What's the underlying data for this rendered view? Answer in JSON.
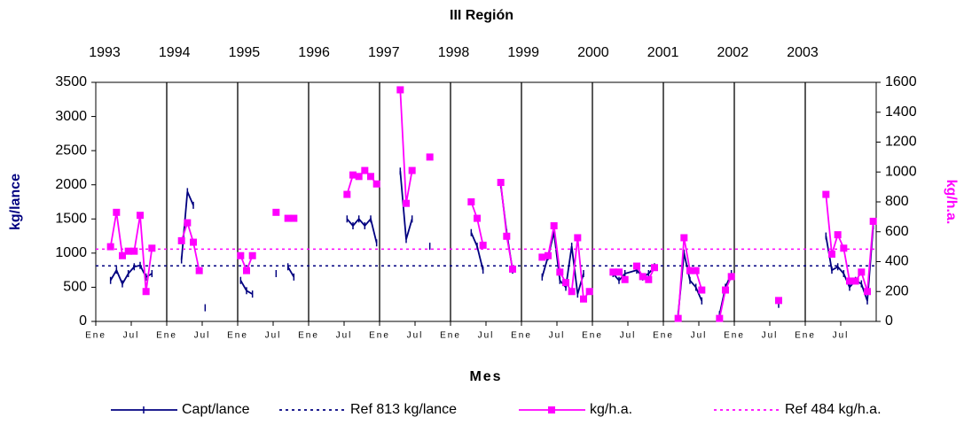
{
  "chart_data": {
    "type": "line",
    "title": "III Región",
    "xlabel": "Mes",
    "ylabel": "kg/lance",
    "y2label": "kg/h.a.",
    "top_axis_labels": [
      "1993",
      "1994",
      "1995",
      "1996",
      "1997",
      "1998",
      "1999",
      "2000",
      "2001",
      "2002",
      "2003"
    ],
    "xlim": [
      "1993-01",
      "2004-01"
    ],
    "xticks": [
      {
        "value": "1993-01",
        "label": "Ene"
      },
      {
        "value": "1993-07",
        "label": "Jul"
      },
      {
        "value": "1994-01",
        "label": "Ene"
      },
      {
        "value": "1994-07",
        "label": "Jul"
      },
      {
        "value": "1995-01",
        "label": "Ene"
      },
      {
        "value": "1995-07",
        "label": "Jul"
      },
      {
        "value": "1996-01",
        "label": "Ene"
      },
      {
        "value": "1996-07",
        "label": "Jul"
      },
      {
        "value": "1997-01",
        "label": "Ene"
      },
      {
        "value": "1997-07",
        "label": "Jul"
      },
      {
        "value": "1998-01",
        "label": "Ene"
      },
      {
        "value": "1998-07",
        "label": "Jul"
      },
      {
        "value": "1999-01",
        "label": "Ene"
      },
      {
        "value": "1999-07",
        "label": "Jul"
      },
      {
        "value": "2000-01",
        "label": "Ene"
      },
      {
        "value": "2000-07",
        "label": "Jul"
      },
      {
        "value": "2001-01",
        "label": "Ene"
      },
      {
        "value": "2001-07",
        "label": "Jul"
      },
      {
        "value": "2002-01",
        "label": "Ene"
      },
      {
        "value": "2002-07",
        "label": "Jul"
      },
      {
        "value": "2003-01",
        "label": "Ene"
      },
      {
        "value": "2003-07",
        "label": "Jul"
      }
    ],
    "ylim": [
      0,
      3500
    ],
    "yticks": [
      0,
      500,
      1000,
      1500,
      2000,
      2500,
      3000,
      3500
    ],
    "y2lim": [
      0,
      1600
    ],
    "y2ticks": [
      0,
      200,
      400,
      600,
      800,
      1000,
      1200,
      1400,
      1600
    ],
    "series": [
      {
        "name": "Capt/lance",
        "color": "#000080",
        "marker": "tick",
        "x": [
          "1993-03",
          "1993-04",
          "1993-05",
          "1993-06",
          "1993-07",
          "1993-08",
          "1993-09",
          "1993-10",
          "1993-12",
          "1994-03",
          "1994-04",
          "1994-05",
          "1994-06",
          "1994-07",
          "1994-09",
          "1995-01",
          "1995-02",
          "1995-03",
          "1995-05",
          "1995-07",
          "1995-08",
          "1995-09",
          "1995-10",
          "1996-03",
          "1996-07",
          "1996-08",
          "1996-09",
          "1996-10",
          "1996-11",
          "1996-12",
          "1997-02",
          "1997-04",
          "1997-05",
          "1997-06",
          "1997-07",
          "1997-09",
          "1997-12",
          "1998-04",
          "1998-05",
          "1998-06",
          "1998-07",
          "1998-09",
          "1998-10",
          "1998-11",
          "1999-02",
          "1999-04",
          "1999-05",
          "1999-06",
          "1999-07",
          "1999-08",
          "1999-09",
          "1999-10",
          "1999-11",
          "2000-02",
          "2000-04",
          "2000-05",
          "2000-06",
          "2000-08",
          "2000-09",
          "2000-10",
          "2000-11",
          "2001-01",
          "2001-03",
          "2001-04",
          "2001-05",
          "2001-06",
          "2001-07",
          "2001-09",
          "2001-10",
          "2001-11",
          "2001-12",
          "2002-04",
          "2002-08",
          "2002-12",
          "2003-04",
          "2003-05",
          "2003-06",
          "2003-07",
          "2003-08",
          "2003-09",
          "2003-10",
          "2003-11",
          "2003-12"
        ],
        "values": [
          600,
          750,
          550,
          700,
          800,
          820,
          650,
          700,
          null,
          900,
          1900,
          1700,
          null,
          200,
          null,
          600,
          450,
          400,
          null,
          700,
          null,
          800,
          650,
          null,
          1500,
          1400,
          1500,
          1400,
          1500,
          1150,
          null,
          2200,
          1200,
          1500,
          null,
          1100,
          null,
          1300,
          1100,
          750,
          null,
          2000,
          1300,
          750,
          null,
          650,
          950,
          1300,
          600,
          500,
          1100,
          400,
          700,
          null,
          700,
          600,
          700,
          750,
          650,
          700,
          800,
          null,
          100,
          1000,
          600,
          500,
          300,
          null,
          100,
          500,
          700,
          null,
          250,
          null,
          1250,
          750,
          800,
          700,
          500,
          600,
          550,
          300,
          1400
        ]
      },
      {
        "name": "Ref 813 kg/lance",
        "color": "#000080",
        "dashed": true,
        "value": 813
      },
      {
        "name": "kg/h.a.",
        "color": "#ff00ff",
        "marker": "square",
        "axis": "y2",
        "x": [
          "1993-03",
          "1993-04",
          "1993-05",
          "1993-06",
          "1993-07",
          "1993-08",
          "1993-09",
          "1993-10",
          "1993-12",
          "1994-03",
          "1994-04",
          "1994-05",
          "1994-06",
          "1994-09",
          "1995-01",
          "1995-02",
          "1995-03",
          "1995-05",
          "1995-07",
          "1995-08",
          "1995-09",
          "1995-10",
          "1996-03",
          "1996-07",
          "1996-08",
          "1996-09",
          "1996-10",
          "1996-11",
          "1996-12",
          "1997-02",
          "1997-04",
          "1997-05",
          "1997-06",
          "1997-07",
          "1997-09",
          "1997-12",
          "1998-04",
          "1998-05",
          "1998-06",
          "1998-07",
          "1998-09",
          "1998-10",
          "1998-11",
          "1999-02",
          "1999-04",
          "1999-05",
          "1999-06",
          "1999-07",
          "1999-08",
          "1999-09",
          "1999-10",
          "1999-11",
          "1999-12",
          "2000-02",
          "2000-04",
          "2000-05",
          "2000-06",
          "2000-07",
          "2000-08",
          "2000-09",
          "2000-10",
          "2000-11",
          "2001-01",
          "2001-03",
          "2001-04",
          "2001-05",
          "2001-06",
          "2001-07",
          "2001-09",
          "2001-10",
          "2001-11",
          "2001-12",
          "2002-04",
          "2002-08",
          "2002-12",
          "2003-04",
          "2003-05",
          "2003-06",
          "2003-07",
          "2003-08",
          "2003-09",
          "2003-10",
          "2003-11",
          "2003-12"
        ],
        "values": [
          500,
          730,
          440,
          470,
          470,
          710,
          200,
          490,
          null,
          540,
          660,
          530,
          340,
          null,
          440,
          340,
          440,
          null,
          730,
          null,
          690,
          690,
          null,
          850,
          980,
          970,
          1010,
          970,
          920,
          null,
          1550,
          790,
          1010,
          null,
          1100,
          null,
          800,
          690,
          510,
          null,
          930,
          570,
          350,
          null,
          430,
          440,
          640,
          330,
          260,
          200,
          560,
          150,
          200,
          null,
          330,
          330,
          280,
          null,
          370,
          300,
          280,
          360,
          null,
          20,
          560,
          340,
          340,
          210,
          null,
          20,
          210,
          300,
          null,
          140,
          null,
          850,
          450,
          580,
          490,
          270,
          270,
          330,
          200,
          670
        ]
      },
      {
        "name": "Ref 484 kg/h.a.",
        "color": "#ff00ff",
        "dashed": true,
        "value": 484,
        "axis": "y2"
      }
    ]
  }
}
